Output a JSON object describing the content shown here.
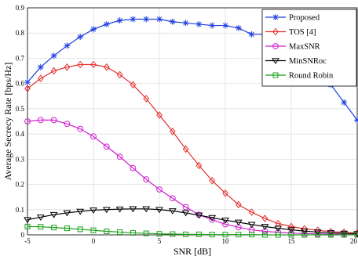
{
  "chart_data": {
    "type": "line",
    "title": "",
    "xlabel": "SNR [dB]",
    "ylabel": "Average Secrecy Rate [bps/Hz]",
    "xlim": [
      -5,
      20
    ],
    "ylim": [
      0,
      0.9
    ],
    "grid": true,
    "legend_position": "top-right",
    "x_ticks": [
      "-5",
      "0",
      "5",
      "10",
      "15",
      "20"
    ],
    "y_ticks": [
      "0",
      "0.1",
      "0.2",
      "0.3",
      "0.4",
      "0.5",
      "0.6",
      "0.7",
      "0.8",
      "0.9"
    ],
    "x": [
      -5,
      -4,
      -3,
      -2,
      -1,
      0,
      1,
      2,
      3,
      4,
      5,
      6,
      7,
      8,
      9,
      10,
      11,
      12,
      13,
      14,
      15,
      16,
      17,
      18,
      19,
      20
    ],
    "series": [
      {
        "name": "Proposed",
        "color": "#1f3fe0",
        "marker": "asterisk",
        "values": [
          0.605,
          0.665,
          0.71,
          0.75,
          0.785,
          0.815,
          0.835,
          0.85,
          0.855,
          0.855,
          0.855,
          0.845,
          0.84,
          0.835,
          0.83,
          0.83,
          0.82,
          0.795,
          0.795,
          0.79,
          0.77,
          0.72,
          0.66,
          0.595,
          0.525,
          0.455
        ]
      },
      {
        "name": "TOS [4]",
        "color": "#e52e2e",
        "marker": "diamond",
        "values": [
          0.58,
          0.62,
          0.65,
          0.665,
          0.675,
          0.675,
          0.665,
          0.635,
          0.595,
          0.54,
          0.475,
          0.41,
          0.34,
          0.275,
          0.215,
          0.165,
          0.12,
          0.09,
          0.065,
          0.045,
          0.033,
          0.024,
          0.018,
          0.013,
          0.01,
          0.008
        ]
      },
      {
        "name": "MaxSNR",
        "color": "#d01fd0",
        "marker": "circle",
        "values": [
          0.45,
          0.455,
          0.455,
          0.44,
          0.42,
          0.39,
          0.35,
          0.31,
          0.265,
          0.22,
          0.18,
          0.145,
          0.11,
          0.08,
          0.06,
          0.042,
          0.03,
          0.02,
          0.014,
          0.01,
          0.007,
          0.005,
          0.004,
          0.003,
          0.002,
          0.002
        ]
      },
      {
        "name": "MinSNRoc",
        "color": "#000000",
        "marker": "triangle-down",
        "values": [
          0.06,
          0.07,
          0.08,
          0.087,
          0.093,
          0.098,
          0.1,
          0.102,
          0.103,
          0.103,
          0.1,
          0.095,
          0.087,
          0.078,
          0.068,
          0.058,
          0.05,
          0.041,
          0.033,
          0.026,
          0.02,
          0.015,
          0.011,
          0.008,
          0.006,
          0.004
        ]
      },
      {
        "name": "Round Robin",
        "color": "#1aa01a",
        "marker": "square",
        "values": [
          0.033,
          0.032,
          0.029,
          0.026,
          0.022,
          0.018,
          0.014,
          0.011,
          0.008,
          0.006,
          0.004,
          0.003,
          0.002,
          0.002,
          0.001,
          0.001,
          0.001,
          0.001,
          0.0,
          0.0,
          0.0,
          0.0,
          0.0,
          0.0,
          0.0,
          0.0
        ]
      }
    ]
  }
}
